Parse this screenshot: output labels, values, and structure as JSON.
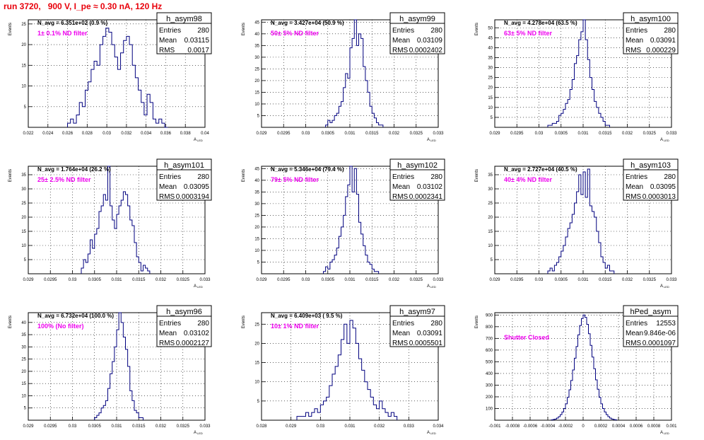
{
  "page": {
    "title": "run 3720,   900 V, I_pe ≈ 0.30 nA, 120 Hz"
  },
  "colors": {
    "title": "#e8000b",
    "histogram_line": "#00007f",
    "annotation": "#ee00ee",
    "grid": "#000000"
  },
  "common": {
    "ylabel": "Events",
    "xlabel": "A",
    "xlabel_sub": "LED",
    "stats_labels": [
      "Entries",
      "Mean",
      "RMS"
    ]
  },
  "chart_data": [
    {
      "type": "histogram",
      "name": "h_asym98",
      "label": "1± 0.1% ND filter",
      "n_avg": "N_avg = 6.351e+02 (0.9 %)",
      "stats": {
        "entries": "280",
        "mean": "0.03115",
        "rms": "0.0017"
      },
      "xlim": [
        0.022,
        0.04
      ],
      "ylim": [
        0,
        26
      ],
      "x_ticks": [
        "0.022",
        "0.024",
        "0.026",
        "0.028",
        "0.03",
        "0.032",
        "0.034",
        "0.036",
        "0.038",
        "0.04"
      ],
      "y_ticks": [
        "5",
        "10",
        "15",
        "20",
        "25"
      ],
      "bins": [
        0.026,
        0.0263,
        0.0266,
        0.0269,
        0.0272,
        0.0275,
        0.0278,
        0.0281,
        0.0284,
        0.0287,
        0.029,
        0.0293,
        0.0296,
        0.0299,
        0.0302,
        0.0305,
        0.0308,
        0.0311,
        0.0314,
        0.0317,
        0.032,
        0.0323,
        0.0326,
        0.0329,
        0.0332,
        0.0335,
        0.0338,
        0.0341,
        0.0344,
        0.0347,
        0.035,
        0.0353,
        0.0356,
        0.0359
      ],
      "values": [
        1,
        2,
        1,
        3,
        6,
        5,
        9,
        11,
        14,
        16,
        15,
        20,
        22,
        24,
        23,
        20,
        17,
        14,
        18,
        21,
        22,
        20,
        15,
        12,
        9,
        6,
        3,
        8,
        6,
        2,
        1,
        2,
        1,
        0
      ]
    },
    {
      "type": "histogram",
      "name": "h_asym99",
      "label": "50± 5% ND filter",
      "n_avg": "N_avg = 3.427e+04 (50.9 %)",
      "stats": {
        "entries": "280",
        "mean": "0.03109",
        "rms": "0.0002402"
      },
      "xlim": [
        0.029,
        0.033
      ],
      "ylim": [
        0,
        46
      ],
      "x_ticks": [
        "0.029",
        "0.0295",
        "0.03",
        "0.0305",
        "0.031",
        "0.0315",
        "0.032",
        "0.0325",
        "0.033"
      ],
      "y_ticks": [
        "5",
        "10",
        "15",
        "20",
        "25",
        "30",
        "35",
        "40",
        "45"
      ],
      "bins": [
        0.03045,
        0.0305,
        0.03055,
        0.0306,
        0.03065,
        0.0307,
        0.03075,
        0.0308,
        0.03085,
        0.0309,
        0.03095,
        0.031,
        0.03105,
        0.0311,
        0.03115,
        0.0312,
        0.03125,
        0.0313,
        0.03135,
        0.0314,
        0.03145,
        0.0315,
        0.03155,
        0.0316,
        0.03165,
        0.0317
      ],
      "values": [
        1,
        3,
        2,
        3,
        5,
        6,
        9,
        11,
        17,
        23,
        21,
        34,
        38,
        47,
        35,
        40,
        38,
        26,
        20,
        15,
        9,
        6,
        4,
        2,
        1,
        1
      ]
    },
    {
      "type": "histogram",
      "name": "h_asym100",
      "label": "63± 5% ND filter",
      "n_avg": "N_avg = 4.278e+04 (63.5 %)",
      "stats": {
        "entries": "280",
        "mean": "0.03091",
        "rms": "0.000229"
      },
      "xlim": [
        0.029,
        0.033
      ],
      "ylim": [
        0,
        54
      ],
      "x_ticks": [
        "0.029",
        "0.0295",
        "0.03",
        "0.0305",
        "0.031",
        "0.0315",
        "0.032",
        "0.0325",
        "0.033"
      ],
      "y_ticks": [
        "5",
        "10",
        "15",
        "20",
        "25",
        "30",
        "35",
        "40",
        "45",
        "50"
      ],
      "bins": [
        0.0302,
        0.03025,
        0.0303,
        0.03035,
        0.0304,
        0.03045,
        0.0305,
        0.03055,
        0.0306,
        0.03065,
        0.0307,
        0.03075,
        0.0308,
        0.03085,
        0.0309,
        0.03095,
        0.031,
        0.03105,
        0.0311,
        0.03115,
        0.0312,
        0.03125,
        0.0313,
        0.03135,
        0.0314,
        0.03145,
        0.0315,
        0.03155
      ],
      "values": [
        1,
        1,
        2,
        2,
        3,
        6,
        7,
        9,
        12,
        14,
        19,
        24,
        32,
        36,
        44,
        48,
        54,
        44,
        34,
        25,
        19,
        13,
        10,
        7,
        5,
        3,
        1,
        1
      ]
    },
    {
      "type": "histogram",
      "name": "h_asym101",
      "label": "25± 2.5% ND filter",
      "n_avg": "N_avg = 1.764e+04 (26.2 %)",
      "stats": {
        "entries": "280",
        "mean": "0.03095",
        "rms": "0.0003194"
      },
      "xlim": [
        0.029,
        0.033
      ],
      "ylim": [
        0,
        38
      ],
      "x_ticks": [
        "0.029",
        "0.0295",
        "0.03",
        "0.0305",
        "0.031",
        "0.0315",
        "0.032",
        "0.0325",
        "0.033"
      ],
      "y_ticks": [
        "5",
        "10",
        "15",
        "20",
        "25",
        "30",
        "35"
      ],
      "bins": [
        0.0302,
        0.03025,
        0.0303,
        0.03035,
        0.0304,
        0.03045,
        0.0305,
        0.03055,
        0.0306,
        0.03065,
        0.0307,
        0.03075,
        0.0308,
        0.03085,
        0.0309,
        0.03095,
        0.031,
        0.03105,
        0.0311,
        0.03115,
        0.0312,
        0.03125,
        0.0313,
        0.03135,
        0.0314,
        0.03145,
        0.0315,
        0.03155,
        0.0316,
        0.03165,
        0.0317
      ],
      "values": [
        2,
        5,
        4,
        7,
        12,
        9,
        14,
        16,
        22,
        24,
        28,
        26,
        38,
        24,
        19,
        16,
        21,
        24,
        26,
        29,
        28,
        24,
        19,
        17,
        11,
        6,
        4,
        1,
        3,
        2,
        1
      ]
    },
    {
      "type": "histogram",
      "name": "h_asym102",
      "label": "79± 5% ND filter",
      "n_avg": "N_avg = 5.346e+04 (79.4 %)",
      "stats": {
        "entries": "280",
        "mean": "0.03102",
        "rms": "0.0002341"
      },
      "xlim": [
        0.029,
        0.033
      ],
      "ylim": [
        0,
        46
      ],
      "x_ticks": [
        "0.029",
        "0.0295",
        "0.03",
        "0.0305",
        "0.031",
        "0.0315",
        "0.032",
        "0.0325",
        "0.033"
      ],
      "y_ticks": [
        "5",
        "10",
        "15",
        "20",
        "25",
        "30",
        "35",
        "40",
        "45"
      ],
      "bins": [
        0.0304,
        0.03045,
        0.0305,
        0.03055,
        0.0306,
        0.03065,
        0.0307,
        0.03075,
        0.0308,
        0.03085,
        0.0309,
        0.03095,
        0.031,
        0.03105,
        0.0311,
        0.03115,
        0.0312,
        0.03125,
        0.0313,
        0.03135,
        0.0314,
        0.03145,
        0.0315,
        0.03155,
        0.0316
      ],
      "values": [
        1,
        3,
        2,
        5,
        6,
        8,
        11,
        16,
        20,
        25,
        33,
        38,
        47,
        35,
        45,
        34,
        22,
        17,
        12,
        8,
        5,
        4,
        2,
        1,
        1
      ]
    },
    {
      "type": "histogram",
      "name": "h_asym103",
      "label": "40± 4% ND filter",
      "n_avg": "N_avg = 2.727e+04 (40.5 %)",
      "stats": {
        "entries": "280",
        "mean": "0.03095",
        "rms": "0.0003013"
      },
      "xlim": [
        0.029,
        0.033
      ],
      "ylim": [
        0,
        38
      ],
      "x_ticks": [
        "0.029",
        "0.0295",
        "0.03",
        "0.0305",
        "0.031",
        "0.0315",
        "0.032",
        "0.0325",
        "0.033"
      ],
      "y_ticks": [
        "5",
        "10",
        "15",
        "20",
        "25",
        "30",
        "35"
      ],
      "bins": [
        0.0302,
        0.03025,
        0.0303,
        0.03035,
        0.0304,
        0.03045,
        0.0305,
        0.03055,
        0.0306,
        0.03065,
        0.0307,
        0.03075,
        0.0308,
        0.03085,
        0.0309,
        0.03095,
        0.031,
        0.03105,
        0.0311,
        0.03115,
        0.0312,
        0.03125,
        0.0313,
        0.03135,
        0.0314,
        0.03145,
        0.0315,
        0.03155,
        0.0316,
        0.03165
      ],
      "values": [
        1,
        2,
        1,
        3,
        4,
        6,
        8,
        10,
        13,
        16,
        18,
        21,
        25,
        29,
        35,
        28,
        36,
        27,
        37,
        24,
        22,
        20,
        15,
        11,
        6,
        4,
        2,
        3,
        1,
        1
      ]
    },
    {
      "type": "histogram",
      "name": "h_asym96",
      "label": "100% (No filter)",
      "n_avg": "N_avg = 6.732e+04 (100.0 %)",
      "stats": {
        "entries": "280",
        "mean": "0.03102",
        "rms": "0.0002127"
      },
      "xlim": [
        0.029,
        0.033
      ],
      "ylim": [
        0,
        44
      ],
      "x_ticks": [
        "0.029",
        "0.0295",
        "0.03",
        "0.0305",
        "0.031",
        "0.0315",
        "0.032",
        "0.0325",
        "0.033"
      ],
      "y_ticks": [
        "5",
        "10",
        "15",
        "20",
        "25",
        "30",
        "35",
        "40"
      ],
      "bins": [
        0.0305,
        0.03055,
        0.0306,
        0.03065,
        0.0307,
        0.03075,
        0.0308,
        0.03085,
        0.0309,
        0.03095,
        0.031,
        0.03105,
        0.0311,
        0.03115,
        0.0312,
        0.03125,
        0.0313,
        0.03135,
        0.0314,
        0.03145,
        0.0315,
        0.03155
      ],
      "values": [
        1,
        2,
        3,
        5,
        6,
        8,
        13,
        19,
        24,
        30,
        37,
        44,
        40,
        34,
        29,
        22,
        12,
        8,
        4,
        3,
        1,
        1
      ]
    },
    {
      "type": "histogram",
      "name": "h_asym97",
      "label": "10± 1% ND filter",
      "n_avg": "N_avg = 6.409e+03 ( 9.5 %)",
      "stats": {
        "entries": "280",
        "mean": "0.03091",
        "rms": "0.0005501"
      },
      "xlim": [
        0.028,
        0.034
      ],
      "ylim": [
        0,
        28
      ],
      "x_ticks": [
        "0.028",
        "0.029",
        "0.03",
        "0.031",
        "0.032",
        "0.033",
        "0.034"
      ],
      "y_ticks": [
        "5",
        "10",
        "15",
        "20",
        "25"
      ],
      "bins": [
        0.0292,
        0.0293,
        0.0294,
        0.0295,
        0.0296,
        0.0297,
        0.0298,
        0.0299,
        0.03,
        0.0301,
        0.0302,
        0.0303,
        0.0304,
        0.0305,
        0.0306,
        0.0307,
        0.0308,
        0.0309,
        0.031,
        0.0311,
        0.0312,
        0.0313,
        0.0314,
        0.0315,
        0.0316,
        0.0317,
        0.0318,
        0.0319,
        0.032,
        0.0321,
        0.0322,
        0.0323,
        0.0324,
        0.0325
      ],
      "values": [
        1,
        1,
        1,
        2,
        1,
        2,
        3,
        2,
        4,
        5,
        6,
        9,
        12,
        14,
        17,
        21,
        25,
        20,
        26,
        24,
        20,
        16,
        13,
        10,
        8,
        6,
        4,
        3,
        5,
        3,
        2,
        1,
        2,
        1
      ]
    },
    {
      "type": "histogram",
      "name": "hPed_asym",
      "label": "Shutter Closed",
      "n_avg": "",
      "stats": {
        "entries": "12553",
        "mean": "9.846e-06",
        "rms": "0.0001097"
      },
      "xlim": [
        -0.001,
        0.001
      ],
      "ylim": [
        0,
        920
      ],
      "x_ticks": [
        "-0.001",
        "-0.0008",
        "-0.0006",
        "-0.0004",
        "-0.0002",
        "0",
        "0.0002",
        "0.0004",
        "0.0006",
        "0.0008",
        "0.001"
      ],
      "y_ticks": [
        "100",
        "200",
        "300",
        "400",
        "500",
        "600",
        "700",
        "800",
        "900"
      ],
      "bins": [
        -0.00036,
        -0.00034,
        -0.00032,
        -0.0003,
        -0.00028,
        -0.00026,
        -0.00024,
        -0.00022,
        -0.0002,
        -0.00018,
        -0.00016,
        -0.00014,
        -0.00012,
        -0.0001,
        -8e-05,
        -6e-05,
        -4e-05,
        -2e-05,
        0,
        2e-05,
        4e-05,
        6e-05,
        8e-05,
        0.0001,
        0.00012,
        0.00014,
        0.00016,
        0.00018,
        0.0002,
        0.00022,
        0.00024,
        0.00026,
        0.00028,
        0.0003,
        0.00032,
        0.00034,
        0.00036
      ],
      "values": [
        3,
        6,
        10,
        18,
        30,
        48,
        70,
        100,
        140,
        195,
        260,
        340,
        430,
        530,
        630,
        730,
        810,
        870,
        900,
        880,
        820,
        740,
        640,
        540,
        440,
        345,
        265,
        195,
        140,
        100,
        70,
        48,
        30,
        18,
        10,
        6,
        3
      ]
    }
  ]
}
